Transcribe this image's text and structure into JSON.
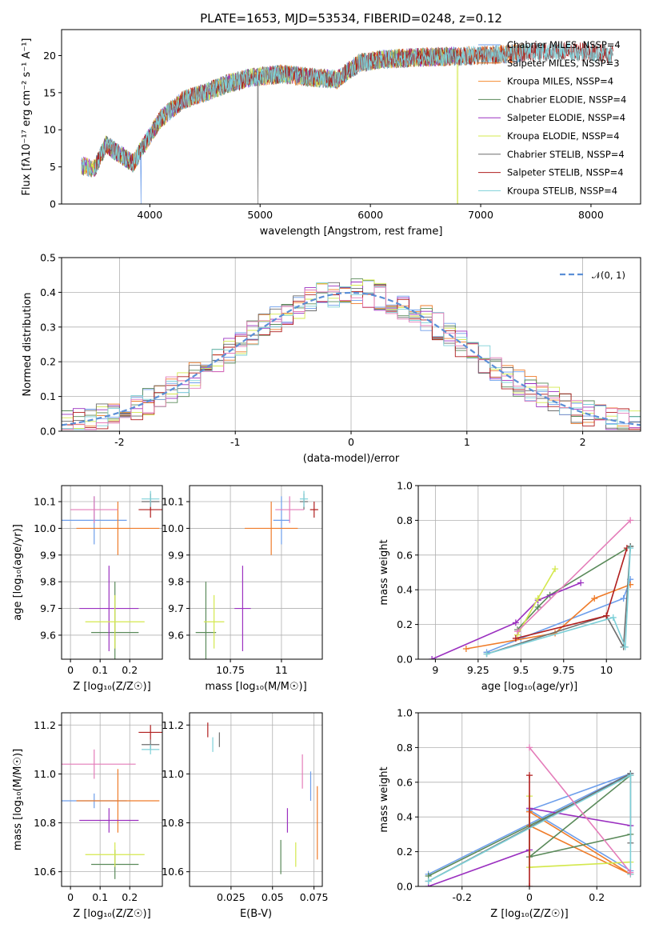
{
  "colors": [
    "#6d9eeb",
    "#ef7c2a",
    "#f58c31",
    "#5a8a5a",
    "#9b30c0",
    "#d4e84e",
    "#6e6e6e",
    "#b01e1e",
    "#7ed0d8",
    "#e47cb9"
  ],
  "chart_data": [
    {
      "id": "spectrum",
      "type": "line",
      "title": "PLATE=1653, MJD=53534, FIBERID=0248, z=0.12",
      "xlabel": "wavelength [Angstrom, rest frame]",
      "ylabel": "Flux [fλ10⁻¹⁷ erg cm⁻² s⁻¹ A⁻¹]",
      "xlim": [
        3200,
        8450
      ],
      "ylim": [
        0,
        23.5
      ],
      "xticks": [
        4000,
        5000,
        6000,
        7000,
        8000
      ],
      "yticks": [
        0,
        5,
        10,
        15,
        20
      ],
      "legend_position": "top-right",
      "profile": [
        [
          3350,
          5.2
        ],
        [
          3500,
          4.8
        ],
        [
          3600,
          8
        ],
        [
          3700,
          7
        ],
        [
          3850,
          5.5
        ],
        [
          3950,
          8
        ],
        [
          4100,
          11.5
        ],
        [
          4300,
          14
        ],
        [
          4500,
          15
        ],
        [
          4700,
          16.2
        ],
        [
          4900,
          17
        ],
        [
          5000,
          17.2
        ],
        [
          5200,
          17.5
        ],
        [
          5500,
          17
        ],
        [
          5700,
          16.8
        ],
        [
          5900,
          19
        ],
        [
          6100,
          19.5
        ],
        [
          6500,
          19.8
        ],
        [
          7000,
          20
        ],
        [
          7500,
          20.5
        ],
        [
          8000,
          20.5
        ],
        [
          8200,
          20
        ]
      ],
      "series": [
        {
          "name": "Chabrier MILES, NSSP=4",
          "color": "#6d9eeb",
          "range": [
            3380,
            7400
          ]
        },
        {
          "name": "Salpeter MILES, NSSP=3",
          "color": "#ef7c2a",
          "range": [
            3380,
            7400
          ]
        },
        {
          "name": "Kroupa MILES, NSSP=4",
          "color": "#f58c31",
          "range": [
            3380,
            7400
          ]
        },
        {
          "name": "Chabrier ELODIE, NSSP=4",
          "color": "#5a8a5a",
          "range": [
            3380,
            6800
          ]
        },
        {
          "name": "Salpeter ELODIE, NSSP=4",
          "color": "#9b30c0",
          "range": [
            3380,
            6800
          ]
        },
        {
          "name": "Kroupa ELODIE, NSSP=4",
          "color": "#d4e84e",
          "range": [
            3380,
            6800
          ]
        },
        {
          "name": "Chabrier STELIB, NSSP=4",
          "color": "#6e6e6e",
          "range": [
            3500,
            8200
          ]
        },
        {
          "name": "Salpeter STELIB, NSSP=4",
          "color": "#b01e1e",
          "range": [
            3500,
            8200
          ]
        },
        {
          "name": "Kroupa STELIB, NSSP=4",
          "color": "#7ed0d8",
          "range": [
            3380,
            8200
          ]
        }
      ]
    },
    {
      "id": "residuals",
      "type": "histogram",
      "xlabel": "(data-model)/error",
      "ylabel": "Normed distribution",
      "xlim": [
        -2.5,
        2.5
      ],
      "ylim": [
        0,
        0.5
      ],
      "xticks": [
        -2,
        -1,
        0,
        1,
        2
      ],
      "yticks": [
        0.0,
        0.1,
        0.2,
        0.3,
        0.4,
        0.5
      ],
      "legend": "𝒩(0, 1)",
      "legend_position": "top-right",
      "bin_width": 0.1,
      "series": [
        {
          "name": "",
          "color": "#6d9eeb"
        },
        {
          "name": "",
          "color": "#ef7c2a"
        },
        {
          "name": "",
          "color": "#5a8a5a"
        },
        {
          "name": "",
          "color": "#9b30c0"
        },
        {
          "name": "",
          "color": "#d4e84e"
        },
        {
          "name": "",
          "color": "#6e6e6e"
        },
        {
          "name": "",
          "color": "#b01e1e"
        },
        {
          "name": "",
          "color": "#7ed0d8"
        },
        {
          "name": "",
          "color": "#e47cb9"
        }
      ]
    },
    {
      "id": "age-vs-z",
      "type": "errorbar",
      "xlabel": "Z [log₁₀(Z/Z☉)]",
      "ylabel": "age  [log₁₀(age/yr)]",
      "xlim": [
        -0.03,
        0.31
      ],
      "ylim": [
        9.51,
        10.16
      ],
      "xticks": [
        0.0,
        0.1,
        0.2
      ],
      "yticks": [
        9.6,
        9.7,
        9.8,
        9.9,
        10.0,
        10.1
      ],
      "points": [
        {
          "x": 0.08,
          "y": 10.03,
          "xerr": 0.11,
          "yerr": 0.09,
          "color": "#6d9eeb"
        },
        {
          "x": 0.16,
          "y": 10.0,
          "xerr": 0.14,
          "yerr": 0.1,
          "color": "#ef7c2a"
        },
        {
          "x": 0.15,
          "y": 9.61,
          "xerr": 0.08,
          "yerr": 0.19,
          "color": "#5a8a5a"
        },
        {
          "x": 0.13,
          "y": 9.7,
          "xerr": 0.1,
          "yerr": 0.16,
          "color": "#9b30c0"
        },
        {
          "x": 0.15,
          "y": 9.65,
          "xerr": 0.1,
          "yerr": 0.1,
          "color": "#d4e84e"
        },
        {
          "x": 0.27,
          "y": 10.1,
          "xerr": 0.03,
          "yerr": 0.03,
          "color": "#6e6e6e"
        },
        {
          "x": 0.27,
          "y": 10.07,
          "xerr": 0.04,
          "yerr": 0.03,
          "color": "#b01e1e"
        },
        {
          "x": 0.27,
          "y": 10.11,
          "xerr": 0.03,
          "yerr": 0.03,
          "color": "#7ed0d8"
        },
        {
          "x": 0.08,
          "y": 10.07,
          "xerr": 0.08,
          "yerr": 0.05,
          "color": "#e47cb9"
        }
      ]
    },
    {
      "id": "age-vs-mass",
      "type": "errorbar",
      "xlabel": "mass [log₁₀(M/M☉)]",
      "ylabel": "",
      "xlim": [
        10.55,
        11.2
      ],
      "ylim": [
        9.51,
        10.16
      ],
      "xticks": [
        10.75,
        11.0
      ],
      "yticks": [
        9.6,
        9.7,
        9.8,
        9.9,
        10.0,
        10.1
      ],
      "points": [
        {
          "x": 11.0,
          "y": 10.03,
          "xerr": 0.04,
          "yerr": 0.09,
          "color": "#6d9eeb"
        },
        {
          "x": 10.95,
          "y": 10.0,
          "xerr": 0.13,
          "yerr": 0.1,
          "color": "#ef7c2a"
        },
        {
          "x": 10.63,
          "y": 9.61,
          "xerr": 0.05,
          "yerr": 0.19,
          "color": "#5a8a5a"
        },
        {
          "x": 10.81,
          "y": 9.7,
          "xerr": 0.04,
          "yerr": 0.16,
          "color": "#9b30c0"
        },
        {
          "x": 10.67,
          "y": 9.65,
          "xerr": 0.05,
          "yerr": 0.1,
          "color": "#d4e84e"
        },
        {
          "x": 11.11,
          "y": 10.1,
          "xerr": 0.02,
          "yerr": 0.03,
          "color": "#6e6e6e"
        },
        {
          "x": 11.16,
          "y": 10.07,
          "xerr": 0.02,
          "yerr": 0.03,
          "color": "#b01e1e"
        },
        {
          "x": 11.11,
          "y": 10.11,
          "xerr": 0.02,
          "yerr": 0.03,
          "color": "#7ed0d8"
        },
        {
          "x": 11.04,
          "y": 10.07,
          "xerr": 0.07,
          "yerr": 0.05,
          "color": "#e47cb9"
        }
      ]
    },
    {
      "id": "weight-vs-age",
      "type": "line",
      "xlabel": "age  [log₁₀(age/yr)]",
      "ylabel": "mass weight",
      "xlim": [
        8.9,
        10.2
      ],
      "ylim": [
        0,
        1.0
      ],
      "xticks": [
        9.0,
        9.25,
        9.5,
        9.75,
        10.0
      ],
      "yticks": [
        0.0,
        0.2,
        0.4,
        0.6,
        0.8,
        1.0
      ],
      "series": [
        {
          "color": "#6d9eeb",
          "points": [
            [
              9.3,
              0.04
            ],
            [
              9.5,
              0.12
            ],
            [
              10.1,
              0.35
            ],
            [
              10.14,
              0.46
            ]
          ]
        },
        {
          "color": "#ef7c2a",
          "points": [
            [
              9.18,
              0.06
            ],
            [
              9.7,
              0.15
            ],
            [
              9.93,
              0.35
            ],
            [
              10.14,
              0.43
            ]
          ]
        },
        {
          "color": "#5a8a5a",
          "points": [
            [
              9.48,
              0.17
            ],
            [
              9.6,
              0.3
            ],
            [
              9.67,
              0.37
            ],
            [
              10.14,
              0.65
            ]
          ]
        },
        {
          "color": "#9b30c0",
          "points": [
            [
              8.98,
              0.0
            ],
            [
              9.47,
              0.21
            ],
            [
              9.6,
              0.34
            ],
            [
              9.85,
              0.44
            ]
          ]
        },
        {
          "color": "#d4e84e",
          "points": [
            [
              9.48,
              0.14
            ],
            [
              9.6,
              0.35
            ],
            [
              9.7,
              0.52
            ]
          ]
        },
        {
          "color": "#6e6e6e",
          "points": [
            [
              9.3,
              0.03
            ],
            [
              10.0,
              0.25
            ],
            [
              10.1,
              0.07
            ],
            [
              10.14,
              0.65
            ]
          ]
        },
        {
          "color": "#b01e1e",
          "points": [
            [
              9.47,
              0.12
            ],
            [
              10.0,
              0.25
            ],
            [
              10.12,
              0.64
            ]
          ]
        },
        {
          "color": "#7ed0d8",
          "points": [
            [
              9.3,
              0.03
            ],
            [
              10.04,
              0.24
            ],
            [
              10.11,
              0.07
            ],
            [
              10.14,
              0.64
            ]
          ]
        },
        {
          "color": "#e47cb9",
          "points": [
            [
              9.48,
              0.16
            ],
            [
              10.14,
              0.8
            ]
          ]
        }
      ]
    },
    {
      "id": "mass-vs-z",
      "type": "errorbar",
      "xlabel": "Z [log₁₀(Z/Z☉)]",
      "ylabel": "mass [log₁₀(M/M☉)]",
      "xlim": [
        -0.03,
        0.31
      ],
      "ylim": [
        10.54,
        11.25
      ],
      "xticks": [
        0.0,
        0.1,
        0.2
      ],
      "yticks": [
        10.6,
        10.8,
        11.0,
        11.2
      ],
      "points": [
        {
          "x": 0.08,
          "y": 10.89,
          "xerr": 0.11,
          "yerr": 0.03,
          "color": "#6d9eeb"
        },
        {
          "x": 0.16,
          "y": 10.89,
          "xerr": 0.14,
          "yerr": 0.13,
          "color": "#ef7c2a"
        },
        {
          "x": 0.15,
          "y": 10.63,
          "xerr": 0.08,
          "yerr": 0.06,
          "color": "#5a8a5a"
        },
        {
          "x": 0.13,
          "y": 10.81,
          "xerr": 0.1,
          "yerr": 0.05,
          "color": "#9b30c0"
        },
        {
          "x": 0.15,
          "y": 10.67,
          "xerr": 0.1,
          "yerr": 0.05,
          "color": "#d4e84e"
        },
        {
          "x": 0.27,
          "y": 11.12,
          "xerr": 0.03,
          "yerr": 0.02,
          "color": "#6e6e6e"
        },
        {
          "x": 0.27,
          "y": 11.17,
          "xerr": 0.04,
          "yerr": 0.03,
          "color": "#b01e1e"
        },
        {
          "x": 0.27,
          "y": 11.1,
          "xerr": 0.03,
          "yerr": 0.02,
          "color": "#7ed0d8"
        },
        {
          "x": 0.08,
          "y": 11.04,
          "xerr": 0.14,
          "yerr": 0.06,
          "color": "#e47cb9"
        }
      ]
    },
    {
      "id": "mass-vs-ebv",
      "type": "errorbar",
      "xlabel": "E(B-V)",
      "ylabel": "",
      "xlim": [
        0.0,
        0.08
      ],
      "ylim": [
        10.54,
        11.25
      ],
      "xticks": [
        0.025,
        0.05,
        0.075
      ],
      "yticks": [
        10.6,
        10.8,
        11.0,
        11.2
      ],
      "points": [
        {
          "x": 0.073,
          "y": 10.95,
          "xerr": 0,
          "yerr": 0.06,
          "color": "#6d9eeb"
        },
        {
          "x": 0.077,
          "y": 10.8,
          "xerr": 0,
          "yerr": 0.15,
          "color": "#ef7c2a"
        },
        {
          "x": 0.055,
          "y": 10.66,
          "xerr": 0,
          "yerr": 0.07,
          "color": "#5a8a5a"
        },
        {
          "x": 0.059,
          "y": 10.81,
          "xerr": 0,
          "yerr": 0.05,
          "color": "#9b30c0"
        },
        {
          "x": 0.064,
          "y": 10.67,
          "xerr": 0,
          "yerr": 0.05,
          "color": "#d4e84e"
        },
        {
          "x": 0.018,
          "y": 11.14,
          "xerr": 0,
          "yerr": 0.03,
          "color": "#6e6e6e"
        },
        {
          "x": 0.011,
          "y": 11.18,
          "xerr": 0,
          "yerr": 0.03,
          "color": "#b01e1e"
        },
        {
          "x": 0.014,
          "y": 11.12,
          "xerr": 0,
          "yerr": 0.03,
          "color": "#7ed0d8"
        },
        {
          "x": 0.068,
          "y": 11.01,
          "xerr": 0,
          "yerr": 0.07,
          "color": "#e47cb9"
        }
      ]
    },
    {
      "id": "weight-vs-z",
      "type": "line",
      "xlabel": "Z [log₁₀(Z/Z☉)]",
      "ylabel": "mass weight",
      "xlim": [
        -0.33,
        0.33
      ],
      "ylim": [
        0,
        1.0
      ],
      "xticks": [
        -0.2,
        0.0,
        0.2
      ],
      "yticks": [
        0.0,
        0.2,
        0.4,
        0.6,
        0.8,
        1.0
      ],
      "series": [
        {
          "color": "#6d9eeb",
          "points": [
            [
              -0.3,
              0.07
            ],
            [
              0.3,
              0.65
            ],
            [
              0.0,
              0.44
            ],
            [
              0.3,
              0.09
            ]
          ]
        },
        {
          "color": "#ef7c2a",
          "points": [
            [
              0.0,
              0.43
            ],
            [
              0.3,
              0.07
            ],
            [
              0.0,
              0.35
            ]
          ]
        },
        {
          "color": "#5a8a5a",
          "points": [
            [
              -0.3,
              0.06
            ],
            [
              0.3,
              0.64
            ],
            [
              0.0,
              0.17
            ],
            [
              0.3,
              0.3
            ]
          ]
        },
        {
          "color": "#9b30c0",
          "points": [
            [
              -0.3,
              0.0
            ],
            [
              0.0,
              0.21
            ],
            [
              0.0,
              0.45
            ],
            [
              0.3,
              0.35
            ]
          ]
        },
        {
          "color": "#d4e84e",
          "points": [
            [
              0.0,
              0.52
            ],
            [
              0.0,
              0.11
            ],
            [
              0.3,
              0.14
            ]
          ]
        },
        {
          "color": "#6e6e6e",
          "points": [
            [
              -0.3,
              0.03
            ],
            [
              0.3,
              0.65
            ],
            [
              0.3,
              0.25
            ]
          ]
        },
        {
          "color": "#b01e1e",
          "points": [
            [
              0.0,
              0.0
            ],
            [
              0.0,
              0.64
            ]
          ]
        },
        {
          "color": "#7ed0d8",
          "points": [
            [
              -0.3,
              0.03
            ],
            [
              0.3,
              0.64
            ],
            [
              0.3,
              0.07
            ]
          ]
        },
        {
          "color": "#e47cb9",
          "points": [
            [
              0.0,
              0.8
            ],
            [
              0.3,
              0.08
            ]
          ]
        }
      ]
    }
  ]
}
